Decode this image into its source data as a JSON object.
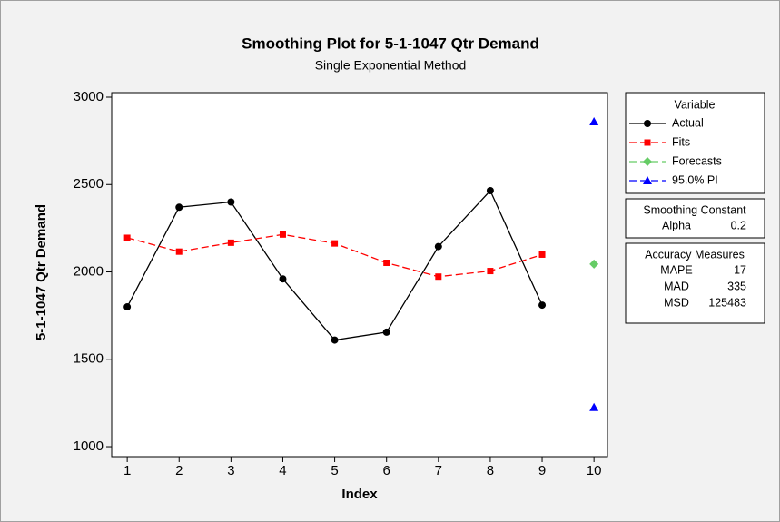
{
  "chart_data": {
    "type": "line",
    "title": "Smoothing Plot for 5-1-1047 Qtr Demand",
    "subtitle": "Single Exponential Method",
    "xlabel": "Index",
    "ylabel": "5-1-1047 Qtr Demand",
    "xlim": [
      0.7,
      10.26
    ],
    "ylim": [
      943,
      3026
    ],
    "xticks": [
      1,
      2,
      3,
      4,
      5,
      6,
      7,
      8,
      9,
      10
    ],
    "yticks": [
      1000,
      1500,
      2000,
      2500,
      3000
    ],
    "legend_title": "Variable",
    "series": [
      {
        "name": "Actual",
        "color": "#000000",
        "marker": "circle",
        "linestyle": "solid",
        "x": [
          1,
          2,
          3,
          4,
          5,
          6,
          7,
          8,
          9
        ],
        "values": [
          1800,
          2370,
          2400,
          1960,
          1610,
          1655,
          2145,
          2465,
          1810
        ]
      },
      {
        "name": "Fits",
        "color": "#ff0000",
        "marker": "square",
        "linestyle": "dashed",
        "x": [
          1,
          2,
          3,
          4,
          5,
          6,
          7,
          8,
          9
        ],
        "values": [
          2195,
          2116,
          2167,
          2214,
          2163,
          2052,
          1973,
          2005,
          2099
        ]
      },
      {
        "name": "Forecasts",
        "color": "#66cc66",
        "marker": "diamond",
        "linestyle": "dashed",
        "x": [
          10
        ],
        "values": [
          2045
        ]
      },
      {
        "name": "95.0% PI",
        "color": "#0000ff",
        "marker": "triangle",
        "linestyle": "dashed",
        "x": [
          10,
          10
        ],
        "values": [
          2860,
          1225
        ]
      }
    ],
    "smoothing_constant": {
      "title": "Smoothing Constant",
      "rows": [
        [
          "Alpha",
          0.2
        ]
      ]
    },
    "accuracy_measures": {
      "title": "Accuracy Measures",
      "rows": [
        [
          "MAPE",
          17
        ],
        [
          "MAD",
          335
        ],
        [
          "MSD",
          125483
        ]
      ]
    }
  }
}
